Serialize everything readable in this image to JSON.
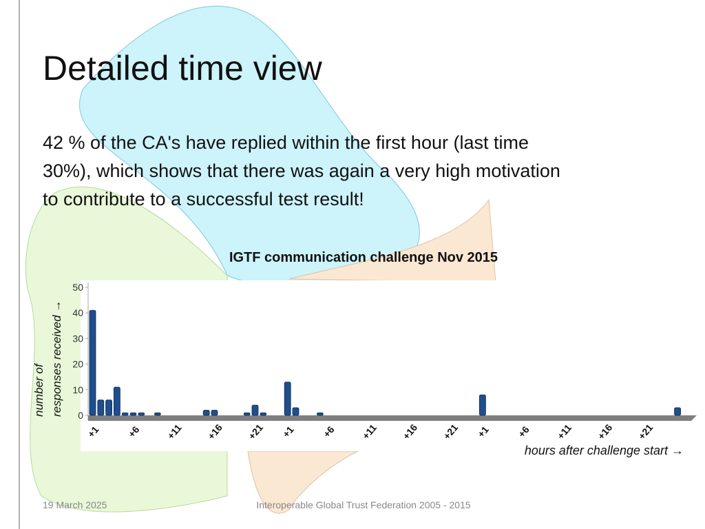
{
  "slide": {
    "title": "Detailed time view",
    "body": [
      "42 % of the CA's have replied within the first hour (last time",
      "30%), which shows that there was again a very high motivation",
      "to contribute to a successful test result!"
    ],
    "footer_date": "19 March 2025",
    "footer_text": "Interoperable Global Trust Federation 2005 - 2015"
  },
  "chart_data": {
    "type": "bar",
    "title": "IGTF communication challenge Nov 2015",
    "ylabel": [
      "number of",
      "responses received →"
    ],
    "xlabel": "hours after challenge start →",
    "categories": [
      "+1",
      null,
      null,
      null,
      null,
      "+6",
      null,
      null,
      null,
      null,
      "+11",
      null,
      null,
      null,
      null,
      "+16",
      null,
      null,
      null,
      null,
      "+21",
      null,
      null,
      null,
      "+1",
      null,
      null,
      null,
      null,
      "+6",
      null,
      null,
      null,
      null,
      "+11",
      null,
      null,
      null,
      null,
      "+16",
      null,
      null,
      null,
      null,
      "+21",
      null,
      null,
      null,
      "+1",
      null,
      null,
      null,
      null,
      "+6",
      null,
      null,
      null,
      null,
      "+11",
      null,
      null,
      null,
      null,
      "+16",
      null,
      null,
      null,
      null,
      "+21",
      null,
      null,
      null,
      null
    ],
    "values": [
      41,
      6,
      6,
      11,
      1,
      1,
      1,
      0,
      1,
      0,
      0,
      0,
      0,
      0,
      2,
      2,
      0,
      0,
      0,
      1,
      4,
      1,
      0,
      0,
      13,
      3,
      0,
      0,
      1,
      0,
      0,
      0,
      0,
      0,
      0,
      0,
      0,
      0,
      0,
      0,
      0,
      0,
      0,
      0,
      0,
      0,
      0,
      0,
      8,
      0,
      0,
      0,
      0,
      0,
      0,
      0,
      0,
      0,
      0,
      0,
      0,
      0,
      0,
      0,
      0,
      0,
      0,
      0,
      0,
      0,
      0,
      0,
      3
    ],
    "color": "#1f4e8c",
    "ylim": [
      0,
      50
    ],
    "yticks": [
      0,
      10,
      20,
      30,
      40,
      50
    ],
    "grid": false
  }
}
